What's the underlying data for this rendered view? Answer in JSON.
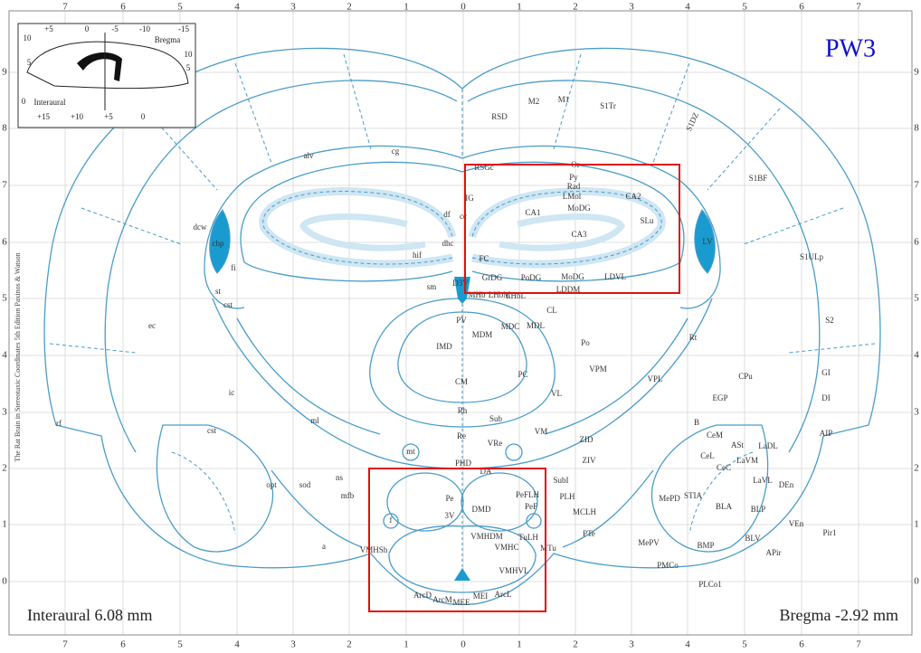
{
  "title": "PW3",
  "interaural": "Interaural 6.08 mm",
  "bregma": "Bregma -2.92 mm",
  "side_note": "The Rat Brain in Stereotaxic Coordinates 5th Edition Paxinos & Watson",
  "top_scale": [
    "7",
    "6",
    "5",
    "4",
    "3",
    "2",
    "1",
    "0",
    "1",
    "2",
    "3",
    "4",
    "5",
    "6",
    "7"
  ],
  "bottom_scale": [
    "7",
    "6",
    "5",
    "4",
    "3",
    "2",
    "1",
    "0",
    "1",
    "2",
    "3",
    "4",
    "5",
    "6",
    "7"
  ],
  "left_scale": [
    "9",
    "8",
    "7",
    "6",
    "5",
    "4",
    "3",
    "2",
    "1",
    "0"
  ],
  "right_scale": [
    "9",
    "8",
    "7",
    "6",
    "5",
    "4",
    "3",
    "2",
    "1",
    "0"
  ],
  "inset": {
    "labels": [
      "+5",
      "0",
      "-5",
      "-10",
      "-15",
      "Bregma",
      "10",
      "5",
      "10",
      "5",
      "0",
      "Interaural",
      "+15",
      "+10",
      "+5",
      "0"
    ]
  },
  "regions": [
    "M2",
    "M1",
    "RSD",
    "S1Tr",
    "S1DZ",
    "S1BF",
    "S1ULp",
    "S2",
    "GI",
    "DI",
    "AIP",
    "LaDL",
    "ASt",
    "CeM",
    "B",
    "CeL",
    "cg",
    "alv",
    "dcw",
    "chp",
    "fi",
    "st",
    "cst",
    "ec",
    "ic",
    "rf",
    "ml",
    "cst",
    "opt",
    "sod",
    "ns",
    "mfb",
    "mt",
    "f",
    "a",
    "VMHSh",
    "PV",
    "MDM",
    "MDC",
    "MDL",
    "IMD",
    "CM",
    "PC",
    "VL",
    "Po",
    "VPM",
    "VPL",
    "Rt",
    "CPu",
    "EGP",
    "Rh",
    "Sub",
    "Re",
    "VRe",
    "VM",
    "ZID",
    "DA",
    "PHD",
    "ZIV",
    "SubI",
    "PeFLH",
    "PLH",
    "Pe",
    "DMD",
    "3V",
    "PeF",
    "MCLH",
    "TuLH",
    "VMHDM",
    "VMHC",
    "MTu",
    "PTe",
    "VMHVL",
    "ArcD",
    "ArcM",
    "MEE",
    "MEI",
    "ArcL",
    "MePD",
    "STIA",
    "BLA",
    "BLP",
    "DEn",
    "LaVL",
    "LaVM",
    "CeC",
    "VEn",
    "Pir1",
    "BLV",
    "BMP",
    "MePV",
    "APir",
    "PMCo",
    "PLCo1",
    "CA1",
    "CA2",
    "CA3",
    "Or",
    "Py",
    "Rad",
    "LMol",
    "MoDG",
    "SLu",
    "LV",
    "RSGc",
    "IG",
    "dhc",
    "df",
    "cc",
    "hif",
    "FC",
    "GrDG",
    "PoDG",
    "MoDG",
    "LDVL",
    "LDDM",
    "sm",
    "D3V",
    "MHb",
    "LHbM",
    "LHbL",
    "CL"
  ]
}
